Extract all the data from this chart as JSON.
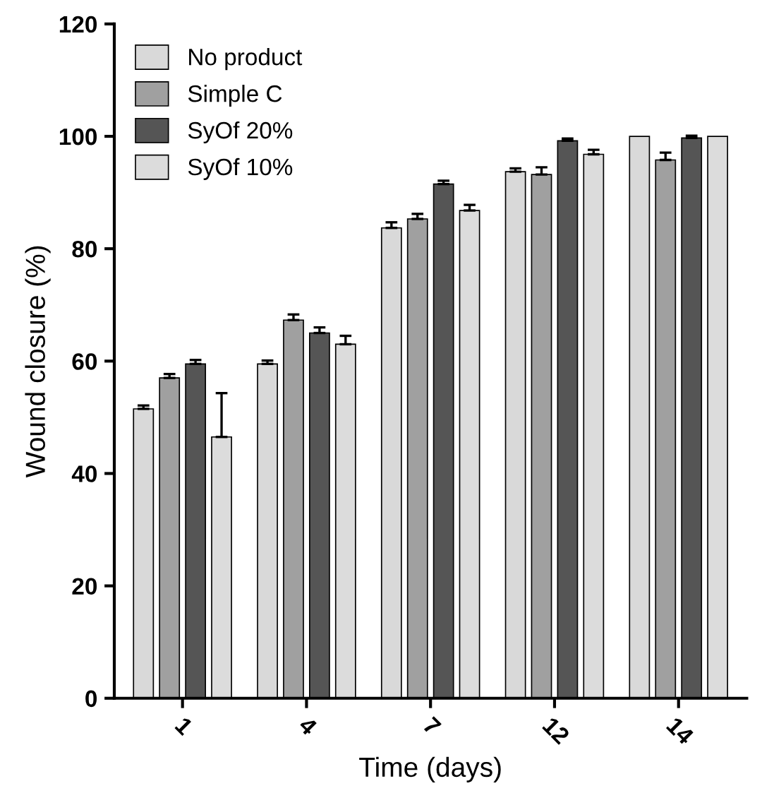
{
  "chart_data": {
    "type": "bar",
    "xlabel": "Time (days)",
    "ylabel": "Wound closure (%)",
    "categories": [
      "1",
      "4",
      "7",
      "12",
      "14"
    ],
    "series": [
      {
        "name": "No product",
        "color": "#d9d9d9",
        "values": [
          51.5,
          59.5,
          83.7,
          93.7,
          100
        ],
        "errors": [
          [
            51.5,
            52.1
          ],
          [
            59.5,
            60.1
          ],
          [
            83.7,
            84.7
          ],
          [
            93.7,
            94.3
          ],
          null
        ]
      },
      {
        "name": "Simple C",
        "color": "#a0a0a0",
        "values": [
          57,
          67.3,
          85.3,
          93.2,
          95.8
        ],
        "errors": [
          [
            57,
            57.7
          ],
          [
            67.3,
            68.3
          ],
          [
            85.3,
            86.2
          ],
          [
            93.2,
            94.5
          ],
          [
            95.8,
            97.1
          ]
        ]
      },
      {
        "name": "SyOf 20%",
        "color": "#555555",
        "values": [
          59.5,
          65,
          91.5,
          99.2,
          99.7
        ],
        "errors": [
          [
            59.5,
            60.2
          ],
          [
            65,
            66
          ],
          [
            91.5,
            92.1
          ],
          [
            99.2,
            99.6
          ],
          [
            99.7,
            100.1
          ]
        ]
      },
      {
        "name": "SyOf 10%",
        "color": "#dcdcdc",
        "values": [
          46.5,
          63,
          86.8,
          96.8,
          100
        ],
        "errors": [
          [
            46.5,
            54.3
          ],
          [
            63,
            64.5
          ],
          [
            86.8,
            87.8
          ],
          [
            96.8,
            97.6
          ],
          null
        ]
      }
    ],
    "ylim": [
      0,
      120
    ],
    "yticks": [
      0,
      20,
      40,
      60,
      80,
      100,
      120
    ],
    "grid": false,
    "legend": "top left"
  }
}
